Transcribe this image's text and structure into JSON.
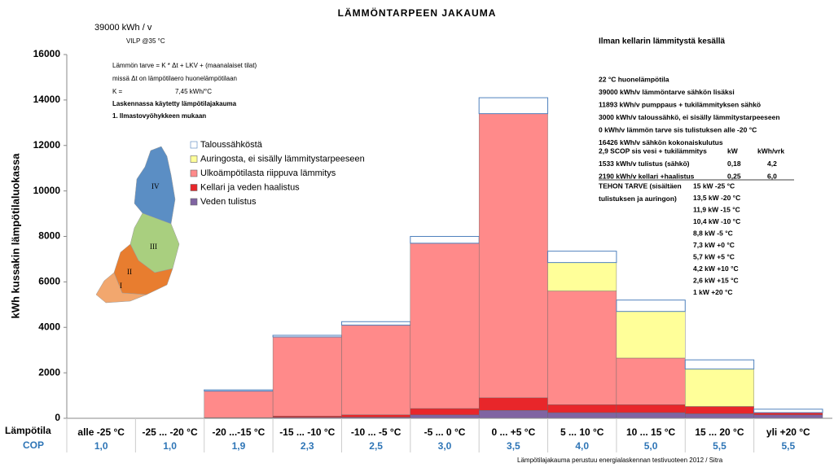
{
  "chart_data": {
    "type": "bar",
    "stacked": true,
    "title": "LÄMMÖNTARPEEN JAKAUMA",
    "subtitle": "39000 kWh / v",
    "note_top": "VILP @35 °C",
    "note_right_title": "Ilman kellarin lämmitystä kesällä",
    "ylabel": "kWh kussakin lämpötilaluokassa",
    "row_labels": [
      "Lämpötila",
      "COP"
    ],
    "categories": [
      "alle -25 °C",
      "-25 ... -20 °C",
      "-20 ...-15 °C",
      "-15 ... -10 °C",
      "-10 ... -5 °C",
      "-5 ... 0 °C",
      "0 ... +5 °C",
      "5 ... 10 °C",
      "10 ... 15 °C",
      "15 ... 20 °C",
      "yli +20 °C"
    ],
    "cop": [
      "1,0",
      "1,0",
      "1,9",
      "2,3",
      "2,5",
      "3,0",
      "3,5",
      "4,0",
      "5,0",
      "5,5",
      "5,5"
    ],
    "series": [
      {
        "name": "Veden tulistus",
        "color": "#8064a2",
        "values": [
          0,
          0,
          0,
          40,
          50,
          150,
          350,
          250,
          250,
          200,
          150
        ]
      },
      {
        "name": "Kellari ja veden haalistus",
        "color": "#e8262a",
        "values": [
          0,
          0,
          30,
          60,
          100,
          280,
          550,
          350,
          350,
          320,
          100
        ]
      },
      {
        "name": "Ulkoämpötilasta riippuva lämmitys",
        "color": "#ff8a8a",
        "values": [
          0,
          0,
          1170,
          3480,
          3950,
          7270,
          12500,
          5000,
          2050,
          0,
          0
        ]
      },
      {
        "name": "Auringosta, ei sisälly lämmitystarpeeseen",
        "color": "#ffff99",
        "values": [
          0,
          0,
          0,
          0,
          0,
          0,
          0,
          1250,
          2050,
          1650,
          0
        ]
      },
      {
        "name": "Taloussähköstä",
        "color": "#ffffff",
        "values": [
          0,
          0,
          50,
          70,
          150,
          300,
          700,
          500,
          500,
          400,
          150
        ]
      }
    ],
    "ylim": [
      0,
      16000
    ],
    "yticks": [
      0,
      2000,
      4000,
      6000,
      8000,
      10000,
      12000,
      14000,
      16000
    ],
    "notes_left": [
      "Lämmön tarve =  K * Δt + LKV + (maanalaiset tilat)",
      "missä Δt on lämpötilaero huonelämpötilaan",
      "K =",
      "7,45 kWh/°C",
      "Laskennassa käytetty lämpötilajakauma",
      "1.  Ilmastovyöhykkeen mukaan"
    ],
    "notes_right": [
      "22  °C huonelämpötila",
      "39000  kWh/v lämmöntarve sähkön lisäksi",
      "11893  kWh/v pumppaus + tukilämmityksen sähkö",
      "3000  kWh/v   taloussähkö, ei sisälly lämmitystarpeeseen",
      "0   kWh/v      lämmön tarve sis tulistuksen alle -20 °C",
      "16426  kWh/v  sähkön kokonaiskulutus"
    ],
    "notes_table": [
      [
        "2,9 SCOP sis vesi + tukilämmitys",
        "kW",
        "kWh/vrk"
      ],
      [
        "1533  kWh/v  tulistus (sähkö)",
        "0,18",
        "4,2"
      ],
      [
        "2190  kWh/v  kellari +haalistus",
        "0,25",
        "6,0"
      ]
    ],
    "power_title": [
      "TEHON TARVE (sisältäen",
      "tulistuksen ja auringon)"
    ],
    "power": [
      "15  kW  -25 °C",
      "13,5  kW  -20 °C",
      "11,9  kW  -15 °C",
      "10,4  kW  -10 °C",
      "8,8  kW  -5  °C",
      "7,3  kW  +0  °C",
      "5,7  kW  +5  °C",
      "4,2  kW  +10 °C",
      "2,6  kW  +15 °C",
      "1  kW  +20 °C"
    ],
    "map_labels": [
      "IV",
      "III",
      "II",
      "I"
    ],
    "footnote": "Lämpötilajakauma perustuu energialaskennan testivuoteen 2012 / Sitra"
  }
}
